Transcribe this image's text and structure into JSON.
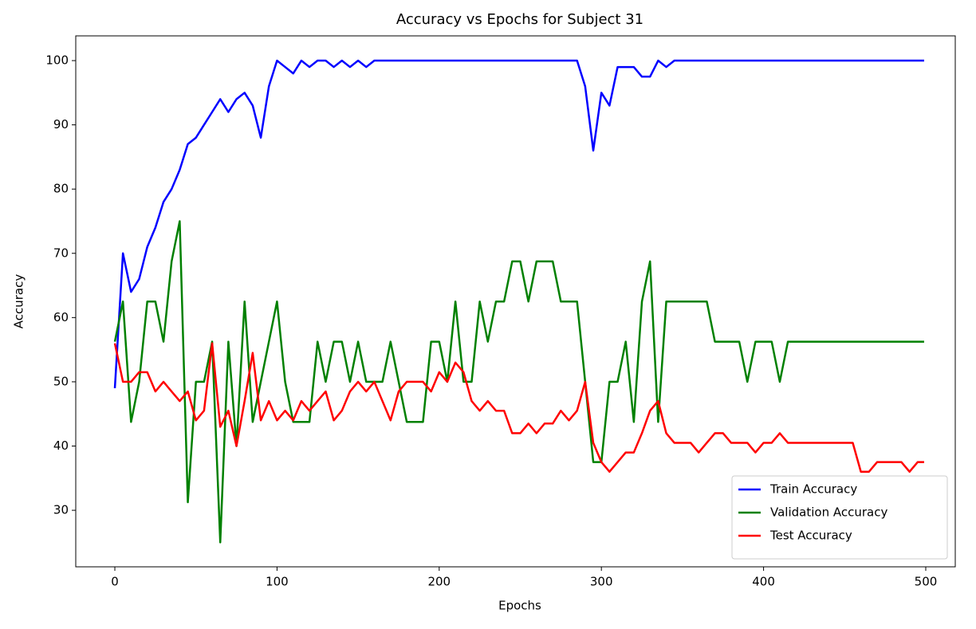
{
  "chart_data": {
    "type": "line",
    "title": "Accuracy vs Epochs for Subject 31",
    "xlabel": "Epochs",
    "ylabel": "Accuracy",
    "x": [
      0,
      5,
      10,
      15,
      20,
      25,
      30,
      35,
      40,
      45,
      50,
      55,
      60,
      65,
      70,
      75,
      80,
      85,
      90,
      95,
      100,
      105,
      110,
      115,
      120,
      125,
      130,
      135,
      140,
      145,
      150,
      155,
      160,
      165,
      170,
      175,
      180,
      185,
      190,
      195,
      200,
      205,
      210,
      215,
      220,
      225,
      230,
      235,
      240,
      245,
      250,
      255,
      260,
      265,
      270,
      275,
      280,
      285,
      290,
      295,
      300,
      305,
      310,
      315,
      320,
      325,
      330,
      335,
      340,
      345,
      350,
      355,
      360,
      365,
      370,
      375,
      380,
      385,
      390,
      395,
      400,
      405,
      410,
      415,
      420,
      425,
      430,
      435,
      440,
      445,
      450,
      455,
      460,
      465,
      470,
      475,
      480,
      485,
      490,
      495,
      499
    ],
    "series": [
      {
        "name": "Train Accuracy",
        "color": "#0000ff",
        "values": [
          49,
          70,
          64,
          66,
          71,
          74,
          78,
          80,
          83,
          87,
          88,
          90,
          92,
          94,
          92,
          94,
          95,
          93,
          88,
          96,
          100,
          99,
          98,
          100,
          99,
          100,
          100,
          99,
          100,
          99,
          100,
          99,
          100,
          100,
          100,
          100,
          100,
          100,
          100,
          100,
          100,
          100,
          100,
          100,
          100,
          100,
          100,
          100,
          100,
          100,
          100,
          100,
          100,
          100,
          100,
          100,
          100,
          100,
          96,
          86,
          95,
          93,
          99,
          99,
          99,
          97.5,
          97.5,
          100,
          99,
          100,
          100,
          100,
          100,
          100,
          100,
          100,
          100,
          100,
          100,
          100,
          100,
          100,
          100,
          100,
          100,
          100,
          100,
          100,
          100,
          100,
          100,
          100,
          100,
          100,
          100,
          100,
          100,
          100,
          100,
          100,
          100
        ]
      },
      {
        "name": "Validation Accuracy",
        "color": "#008000",
        "values": [
          56.25,
          62.5,
          43.75,
          50,
          62.5,
          62.5,
          56.25,
          68.75,
          75,
          31.25,
          50,
          50,
          56.25,
          25,
          56.25,
          40,
          62.5,
          43.75,
          50,
          56.25,
          62.5,
          50,
          43.75,
          43.75,
          43.75,
          56.25,
          50,
          56.25,
          56.25,
          50,
          56.25,
          50,
          50,
          50,
          56.25,
          50,
          43.75,
          43.75,
          43.75,
          56.25,
          56.25,
          50,
          62.5,
          50,
          50,
          62.5,
          56.25,
          62.5,
          62.5,
          68.75,
          68.75,
          62.5,
          68.75,
          68.75,
          68.75,
          62.5,
          62.5,
          62.5,
          50,
          37.5,
          37.5,
          50,
          50,
          56.25,
          43.75,
          62.5,
          68.75,
          43.75,
          62.5,
          62.5,
          62.5,
          62.5,
          62.5,
          62.5,
          56.25,
          56.25,
          56.25,
          56.25,
          50,
          56.25,
          56.25,
          56.25,
          50,
          56.25,
          56.25,
          56.25,
          56.25,
          56.25,
          56.25,
          56.25,
          56.25,
          56.25,
          56.25,
          56.25,
          56.25,
          56.25,
          56.25,
          56.25,
          56.25,
          56.25,
          56.25
        ]
      },
      {
        "name": "Test Accuracy",
        "color": "#ff0000",
        "values": [
          56,
          50,
          50,
          51.5,
          51.5,
          48.5,
          50,
          48.5,
          47,
          48.5,
          44,
          45.5,
          56,
          43,
          45.5,
          40,
          47,
          54.5,
          44,
          47,
          44,
          45.5,
          44,
          47,
          45.5,
          47,
          48.5,
          44,
          45.5,
          48.5,
          50,
          48.5,
          50,
          47,
          44,
          48.5,
          50,
          50,
          50,
          48.5,
          51.5,
          50,
          53,
          51.5,
          47,
          45.5,
          47,
          45.5,
          45.5,
          42,
          42,
          43.5,
          42,
          43.5,
          43.5,
          45.5,
          44,
          45.5,
          50,
          40.5,
          37.5,
          36,
          37.5,
          39,
          39,
          42,
          45.5,
          47,
          42,
          40.5,
          40.5,
          40.5,
          39,
          40.5,
          42,
          42,
          40.5,
          40.5,
          40.5,
          39,
          40.5,
          40.5,
          42,
          40.5,
          40.5,
          40.5,
          40.5,
          40.5,
          40.5,
          40.5,
          40.5,
          40.5,
          36,
          36,
          37.5,
          37.5,
          37.5,
          37.5,
          36,
          37.5,
          37.5
        ]
      }
    ],
    "xlim": [
      -24.1,
      518.2
    ],
    "ylim": [
      21.2,
      103.85
    ],
    "xticks": [
      0,
      100,
      200,
      300,
      400,
      500
    ],
    "yticks": [
      30,
      40,
      50,
      60,
      70,
      80,
      90,
      100
    ],
    "legend": "lower right"
  }
}
